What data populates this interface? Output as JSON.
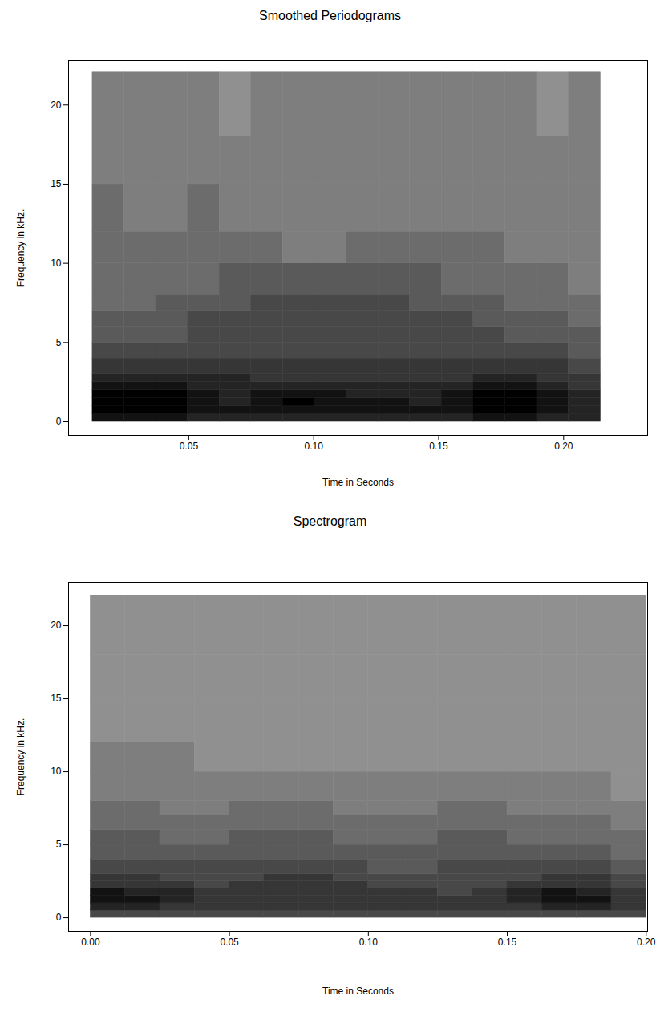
{
  "chart_data": [
    {
      "type": "heatmap",
      "title": "Smoothed Periodograms",
      "x_label": "Time in Seconds",
      "y_label": "Frequency in kHz.",
      "xlim": [
        0.0019,
        0.2336
      ],
      "ylim": [
        -0.86,
        22.8
      ],
      "xticks": [
        0.05,
        {
          "value": 0.1,
          "label": "0.10"
        },
        0.15,
        {
          "value": 0.2,
          "label": "0.20"
        }
      ],
      "yticks": [
        0,
        5,
        10,
        15,
        20
      ],
      "time_bins": [
        0.0115,
        0.0242,
        0.0369,
        0.0496,
        0.0623,
        0.075,
        0.0877,
        0.1004,
        0.1131,
        0.1258,
        0.1385,
        0.1512,
        0.1639,
        0.1766,
        0.1893,
        0.202,
        0.2148
      ],
      "frequency_bins": [
        0,
        0.5,
        1,
        1.5,
        2,
        2.5,
        3,
        4,
        5,
        6,
        7,
        8,
        10,
        12,
        15,
        18,
        22.05
      ],
      "zlim": [
        0,
        10
      ],
      "cells": [
        [
          9,
          9,
          9,
          8,
          8,
          8,
          8,
          8,
          8,
          8,
          8,
          8,
          9,
          9,
          8,
          8
        ],
        [
          10,
          10,
          10,
          9,
          9,
          9,
          9,
          9,
          9,
          9,
          9,
          9,
          10,
          10,
          9,
          8
        ],
        [
          10,
          10,
          10,
          9,
          8,
          9,
          10,
          9,
          9,
          9,
          8,
          9,
          10,
          10,
          9,
          8
        ],
        [
          10,
          10,
          10,
          9,
          8,
          9,
          9,
          9,
          8,
          8,
          8,
          9,
          10,
          10,
          9,
          8
        ],
        [
          9,
          9,
          9,
          8,
          8,
          8,
          8,
          8,
          8,
          8,
          8,
          8,
          9,
          9,
          8,
          7
        ],
        [
          8,
          8,
          8,
          8,
          8,
          7,
          7,
          7,
          7,
          7,
          7,
          7,
          8,
          8,
          7,
          7
        ],
        [
          7,
          7,
          7,
          7,
          7,
          7,
          7,
          7,
          7,
          7,
          7,
          7,
          7,
          7,
          7,
          6
        ],
        [
          6,
          6,
          6,
          6,
          6,
          6,
          6,
          6,
          6,
          6,
          6,
          6,
          6,
          6,
          6,
          5
        ],
        [
          5,
          5,
          5,
          6,
          6,
          6,
          6,
          6,
          6,
          6,
          6,
          6,
          6,
          5,
          5,
          5
        ],
        [
          5,
          5,
          5,
          6,
          6,
          6,
          6,
          6,
          6,
          6,
          6,
          6,
          5,
          5,
          5,
          4
        ],
        [
          4,
          4,
          5,
          5,
          5,
          6,
          6,
          6,
          6,
          6,
          5,
          5,
          5,
          4,
          4,
          4
        ],
        [
          4,
          4,
          4,
          4,
          5,
          5,
          5,
          5,
          5,
          5,
          5,
          4,
          4,
          4,
          4,
          3
        ],
        [
          4,
          4,
          4,
          4,
          4,
          4,
          3,
          3,
          4,
          4,
          4,
          4,
          4,
          3,
          3,
          3
        ],
        [
          4,
          3,
          3,
          4,
          3,
          3,
          3,
          3,
          3,
          3,
          3,
          3,
          3,
          3,
          3,
          3
        ],
        [
          3,
          3,
          3,
          3,
          3,
          3,
          3,
          3,
          3,
          3,
          3,
          3,
          3,
          3,
          3,
          3
        ],
        [
          3,
          3,
          3,
          3,
          2,
          3,
          3,
          3,
          3,
          3,
          3,
          3,
          3,
          3,
          2,
          3
        ]
      ]
    },
    {
      "type": "heatmap",
      "title": "Spectrogram",
      "x_label": "Time in Seconds",
      "y_label": "Frequency in kHz.",
      "xlim": [
        -0.0079,
        0.2005
      ],
      "ylim": [
        -0.93,
        22.97
      ],
      "xticks": [
        {
          "value": 0,
          "label": "0.00"
        },
        0.05,
        {
          "value": 0.1,
          "label": "0.10"
        },
        0.15,
        {
          "value": 0.2,
          "label": "0.20"
        }
      ],
      "yticks": [
        0,
        5,
        10,
        15,
        20
      ],
      "time_bins": [
        0,
        0.0125,
        0.025,
        0.0375,
        0.05,
        0.0625,
        0.075,
        0.0875,
        0.1,
        0.1125,
        0.125,
        0.1375,
        0.15,
        0.1625,
        0.175,
        0.1875,
        0.2
      ],
      "frequency_bins": [
        0,
        0.5,
        1,
        1.5,
        2,
        2.5,
        3,
        4,
        5,
        6,
        7,
        8,
        10,
        12,
        15,
        18,
        22.05
      ],
      "zlim": [
        0,
        10
      ],
      "cells": [
        [
          6,
          6,
          6,
          6,
          6,
          6,
          6,
          6,
          6,
          6,
          6,
          6,
          6,
          6,
          6,
          6
        ],
        [
          8,
          8,
          7,
          7,
          7,
          7,
          7,
          7,
          7,
          7,
          7,
          7,
          7,
          8,
          8,
          7
        ],
        [
          9,
          9,
          8,
          7,
          7,
          7,
          7,
          7,
          7,
          7,
          7,
          7,
          8,
          9,
          9,
          7
        ],
        [
          9,
          8,
          8,
          7,
          7,
          7,
          7,
          7,
          7,
          7,
          6,
          7,
          8,
          9,
          8,
          7
        ],
        [
          7,
          7,
          7,
          6,
          7,
          7,
          7,
          7,
          6,
          6,
          6,
          6,
          7,
          7,
          7,
          6
        ],
        [
          7,
          7,
          6,
          6,
          6,
          7,
          7,
          6,
          6,
          6,
          6,
          6,
          6,
          7,
          7,
          6
        ],
        [
          6,
          6,
          6,
          6,
          6,
          6,
          6,
          6,
          5,
          5,
          6,
          6,
          6,
          6,
          6,
          5
        ],
        [
          5,
          5,
          5,
          5,
          5,
          5,
          5,
          5,
          5,
          5,
          5,
          5,
          5,
          5,
          5,
          4
        ],
        [
          5,
          5,
          4,
          4,
          5,
          5,
          5,
          4,
          4,
          4,
          5,
          5,
          4,
          4,
          4,
          4
        ],
        [
          4,
          4,
          4,
          4,
          4,
          4,
          4,
          4,
          4,
          4,
          4,
          4,
          4,
          4,
          4,
          3
        ],
        [
          4,
          4,
          3,
          3,
          4,
          4,
          4,
          3,
          3,
          3,
          4,
          4,
          3,
          3,
          3,
          3
        ],
        [
          3,
          3,
          3,
          3,
          3,
          3,
          3,
          3,
          3,
          3,
          3,
          3,
          3,
          3,
          3,
          2
        ],
        [
          3,
          3,
          3,
          2,
          2,
          2,
          2,
          2,
          2,
          2,
          2,
          2,
          2,
          2,
          2,
          2
        ],
        [
          2,
          2,
          2,
          2,
          2,
          2,
          2,
          2,
          2,
          2,
          2,
          2,
          2,
          2,
          2,
          2
        ],
        [
          2,
          2,
          2,
          2,
          2,
          2,
          2,
          2,
          2,
          2,
          2,
          2,
          2,
          2,
          2,
          2
        ],
        [
          2,
          2,
          2,
          2,
          2,
          2,
          2,
          2,
          2,
          2,
          2,
          2,
          2,
          2,
          2,
          2
        ]
      ]
    }
  ]
}
